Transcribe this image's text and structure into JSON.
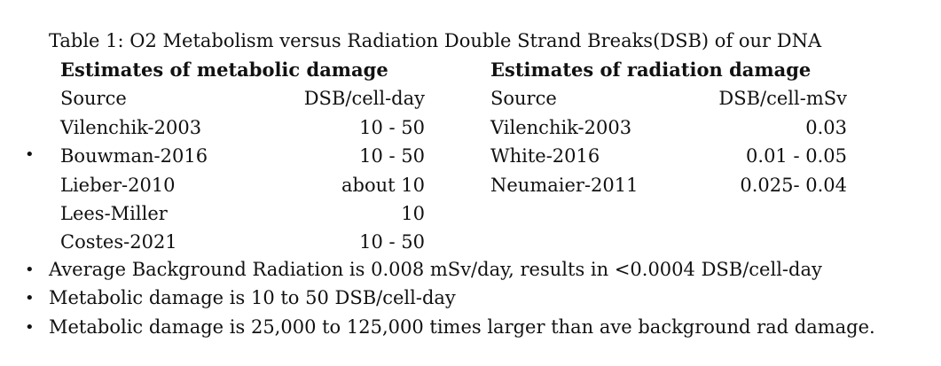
{
  "caption": "Table 1: O2 Metabolism versus Radiation Double Strand Breaks(DSB) of our DNA",
  "bullet_symbol": "•",
  "metabolic": {
    "heading": "Estimates of metabolic damage",
    "col_source": "Source",
    "col_value": "DSB/cell-day",
    "rows": [
      {
        "source": "Vilenchik-2003",
        "value": "10 - 50"
      },
      {
        "source": "Bouwman-2016",
        "value": "10 - 50"
      },
      {
        "source": "Lieber-2010",
        "value": "about 10"
      },
      {
        "source": "Lees-Miller",
        "value": "10"
      },
      {
        "source": "Costes-2021",
        "value": "10 - 50"
      }
    ]
  },
  "radiation": {
    "heading": "Estimates of radiation damage",
    "col_source": "Source",
    "col_value": "DSB/cell-mSv",
    "rows": [
      {
        "source": "Vilenchik-2003",
        "value": "0.03"
      },
      {
        "source": "White-2016",
        "value": "0.01 - 0.05"
      },
      {
        "source": "Neumaier-2011",
        "value": "0.025- 0.04"
      }
    ]
  },
  "bullets": [
    "Average Background Radiation is 0.008 mSv/day, results in <0.0004 DSB/cell-day",
    "Metabolic damage is 10 to 50 DSB/cell-day",
    "Metabolic damage is 25,000 to 125,000 times larger than ave background rad damage."
  ]
}
